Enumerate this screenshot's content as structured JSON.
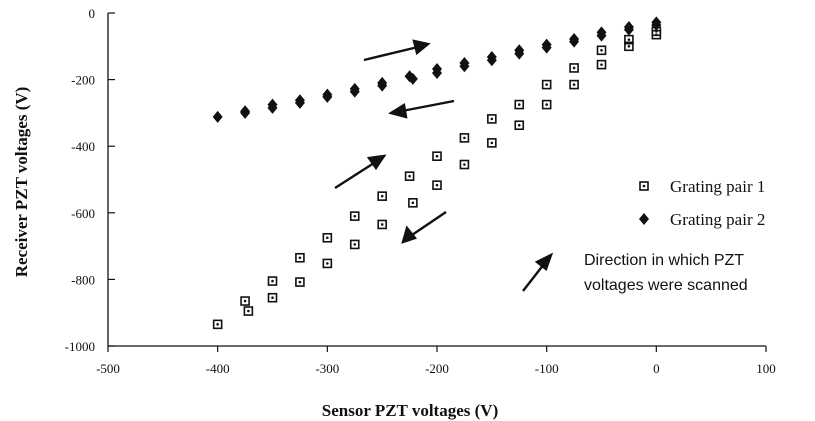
{
  "chart_data": {
    "type": "scatter",
    "xlabel": "Sensor PZT voltages (V)",
    "ylabel": "Receiver PZT voltages (V)",
    "xlim": [
      -500,
      100
    ],
    "ylim": [
      -1000,
      0
    ],
    "x_ticks": [
      -500,
      -400,
      -300,
      -200,
      -100,
      0,
      100
    ],
    "y_ticks": [
      0,
      -200,
      -400,
      -600,
      -800,
      -1000
    ],
    "x_tick_labels": [
      "-500",
      "-400",
      "-300",
      "-200",
      "-100",
      "0",
      "100"
    ],
    "y_tick_labels": [
      "0",
      "-200",
      "-400",
      "-600",
      "-800",
      "-1000"
    ],
    "grid": false,
    "legend_position": "right",
    "series": [
      {
        "name": "Grating pair 1",
        "marker": "open-square",
        "points": [
          [
            -400,
            -935
          ],
          [
            -375,
            -865
          ],
          [
            -372,
            -895
          ],
          [
            -350,
            -805
          ],
          [
            -350,
            -855
          ],
          [
            -325,
            -735
          ],
          [
            -325,
            -808
          ],
          [
            -300,
            -675
          ],
          [
            -300,
            -752
          ],
          [
            -275,
            -610
          ],
          [
            -275,
            -695
          ],
          [
            -250,
            -550
          ],
          [
            -250,
            -635
          ],
          [
            -225,
            -490
          ],
          [
            -222,
            -570
          ],
          [
            -200,
            -430
          ],
          [
            -200,
            -517
          ],
          [
            -175,
            -375
          ],
          [
            -175,
            -455
          ],
          [
            -150,
            -318
          ],
          [
            -150,
            -390
          ],
          [
            -125,
            -275
          ],
          [
            -125,
            -337
          ],
          [
            -100,
            -215
          ],
          [
            -100,
            -275
          ],
          [
            -75,
            -165
          ],
          [
            -75,
            -215
          ],
          [
            -50,
            -112
          ],
          [
            -50,
            -155
          ],
          [
            -25,
            -80
          ],
          [
            -25,
            -100
          ],
          [
            0,
            -55
          ],
          [
            0,
            -65
          ]
        ]
      },
      {
        "name": "Grating pair 2",
        "marker": "filled-diamond",
        "points": [
          [
            -400,
            -312
          ],
          [
            -375,
            -295
          ],
          [
            -375,
            -300
          ],
          [
            -350,
            -275
          ],
          [
            -350,
            -285
          ],
          [
            -325,
            -262
          ],
          [
            -325,
            -270
          ],
          [
            -300,
            -245
          ],
          [
            -300,
            -252
          ],
          [
            -275,
            -228
          ],
          [
            -275,
            -236
          ],
          [
            -250,
            -210
          ],
          [
            -250,
            -218
          ],
          [
            -225,
            -190
          ],
          [
            -222,
            -198
          ],
          [
            -200,
            -168
          ],
          [
            -200,
            -180
          ],
          [
            -175,
            -150
          ],
          [
            -175,
            -160
          ],
          [
            -150,
            -132
          ],
          [
            -150,
            -142
          ],
          [
            -125,
            -112
          ],
          [
            -125,
            -122
          ],
          [
            -100,
            -95
          ],
          [
            -100,
            -104
          ],
          [
            -75,
            -78
          ],
          [
            -75,
            -86
          ],
          [
            -50,
            -58
          ],
          [
            -50,
            -68
          ],
          [
            -25,
            -42
          ],
          [
            -25,
            -50
          ],
          [
            0,
            -28
          ],
          [
            0,
            -36
          ]
        ]
      }
    ],
    "arrow_legend_text": [
      "Direction in which PZT",
      "voltages were scanned"
    ]
  }
}
